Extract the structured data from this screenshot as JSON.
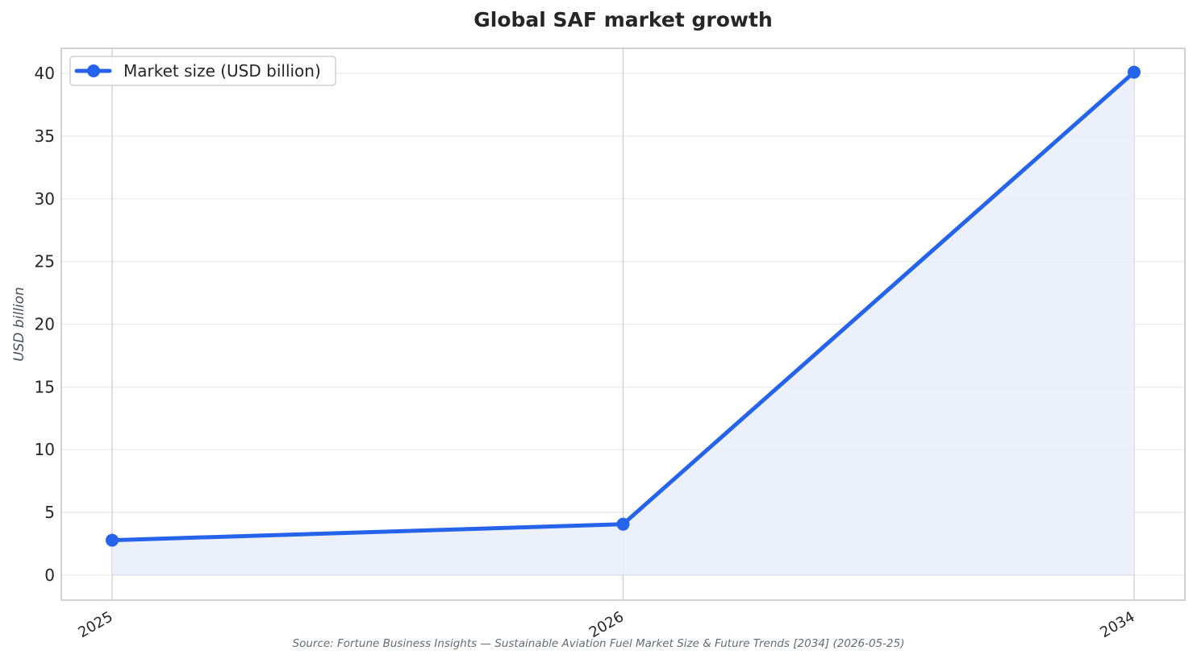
{
  "chart_data": {
    "type": "line",
    "title": "Global SAF market growth",
    "xlabel": "",
    "ylabel": "USD billion",
    "categories": [
      "2025",
      "2026",
      "2034"
    ],
    "series": [
      {
        "name": "Market size (USD billion)",
        "values": [
          2.78,
          4.06,
          40.1
        ]
      }
    ],
    "ylim": [
      -2,
      42
    ],
    "yticks": [
      0,
      5,
      10,
      15,
      20,
      25,
      30,
      35,
      40
    ],
    "grid": true,
    "legend": "top-left",
    "area_fill": true,
    "colors": {
      "line": "#2563eb",
      "fill": "#e9eefb",
      "grid": "#ebebeb",
      "vgrid": "#cfd1d6",
      "frame": "#c6c6c6"
    }
  },
  "source": "Source: Fortune Business Insights — Sustainable Aviation Fuel Market Size & Future Trends [2034] (2026-05-25)"
}
